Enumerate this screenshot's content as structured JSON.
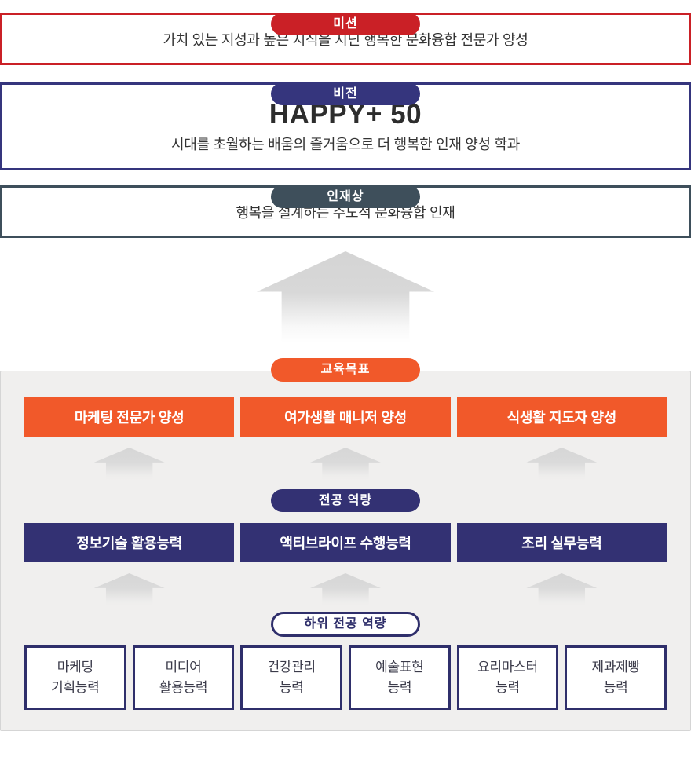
{
  "colors": {
    "red": "#ca2026",
    "navy": "#35357d",
    "navy_dark": "#333173",
    "navy_border": "#2f2f6b",
    "slate": "#3e4f5b",
    "orange": "#f1592a",
    "panel_bg": "#f0efee",
    "panel_border": "#d5d5d5",
    "arrow_gray": "#d6d6d6",
    "text_dark": "#333333"
  },
  "mission": {
    "label": "미션",
    "text": "가치 있는 지성과 높은 지식을 지닌 행복한 문화융합 전문가 양성"
  },
  "vision": {
    "label": "비전",
    "headline": "HAPPY+ 50",
    "text": "시대를 초월하는 배움의 즐거움으로 더 행복한 인재 양성 학과"
  },
  "talent": {
    "label": "인재상",
    "text": "행복을 설계하는 주도적 문화융합 인재"
  },
  "goals": {
    "label": "교육목표",
    "items": [
      "마케팅 전문가 양성",
      "여가생활 매니저 양성",
      "식생활 지도자 양성"
    ]
  },
  "competencies": {
    "label": "전공 역량",
    "items": [
      "정보기술 활용능력",
      "액티브라이프 수행능력",
      "조리 실무능력"
    ]
  },
  "sub_competencies": {
    "label": "하위 전공 역량",
    "items": [
      "마케팅\n기획능력",
      "미디어\n활용능력",
      "건강관리\n능력",
      "예술표현\n능력",
      "요리마스터\n능력",
      "제과제빵\n능력"
    ]
  }
}
